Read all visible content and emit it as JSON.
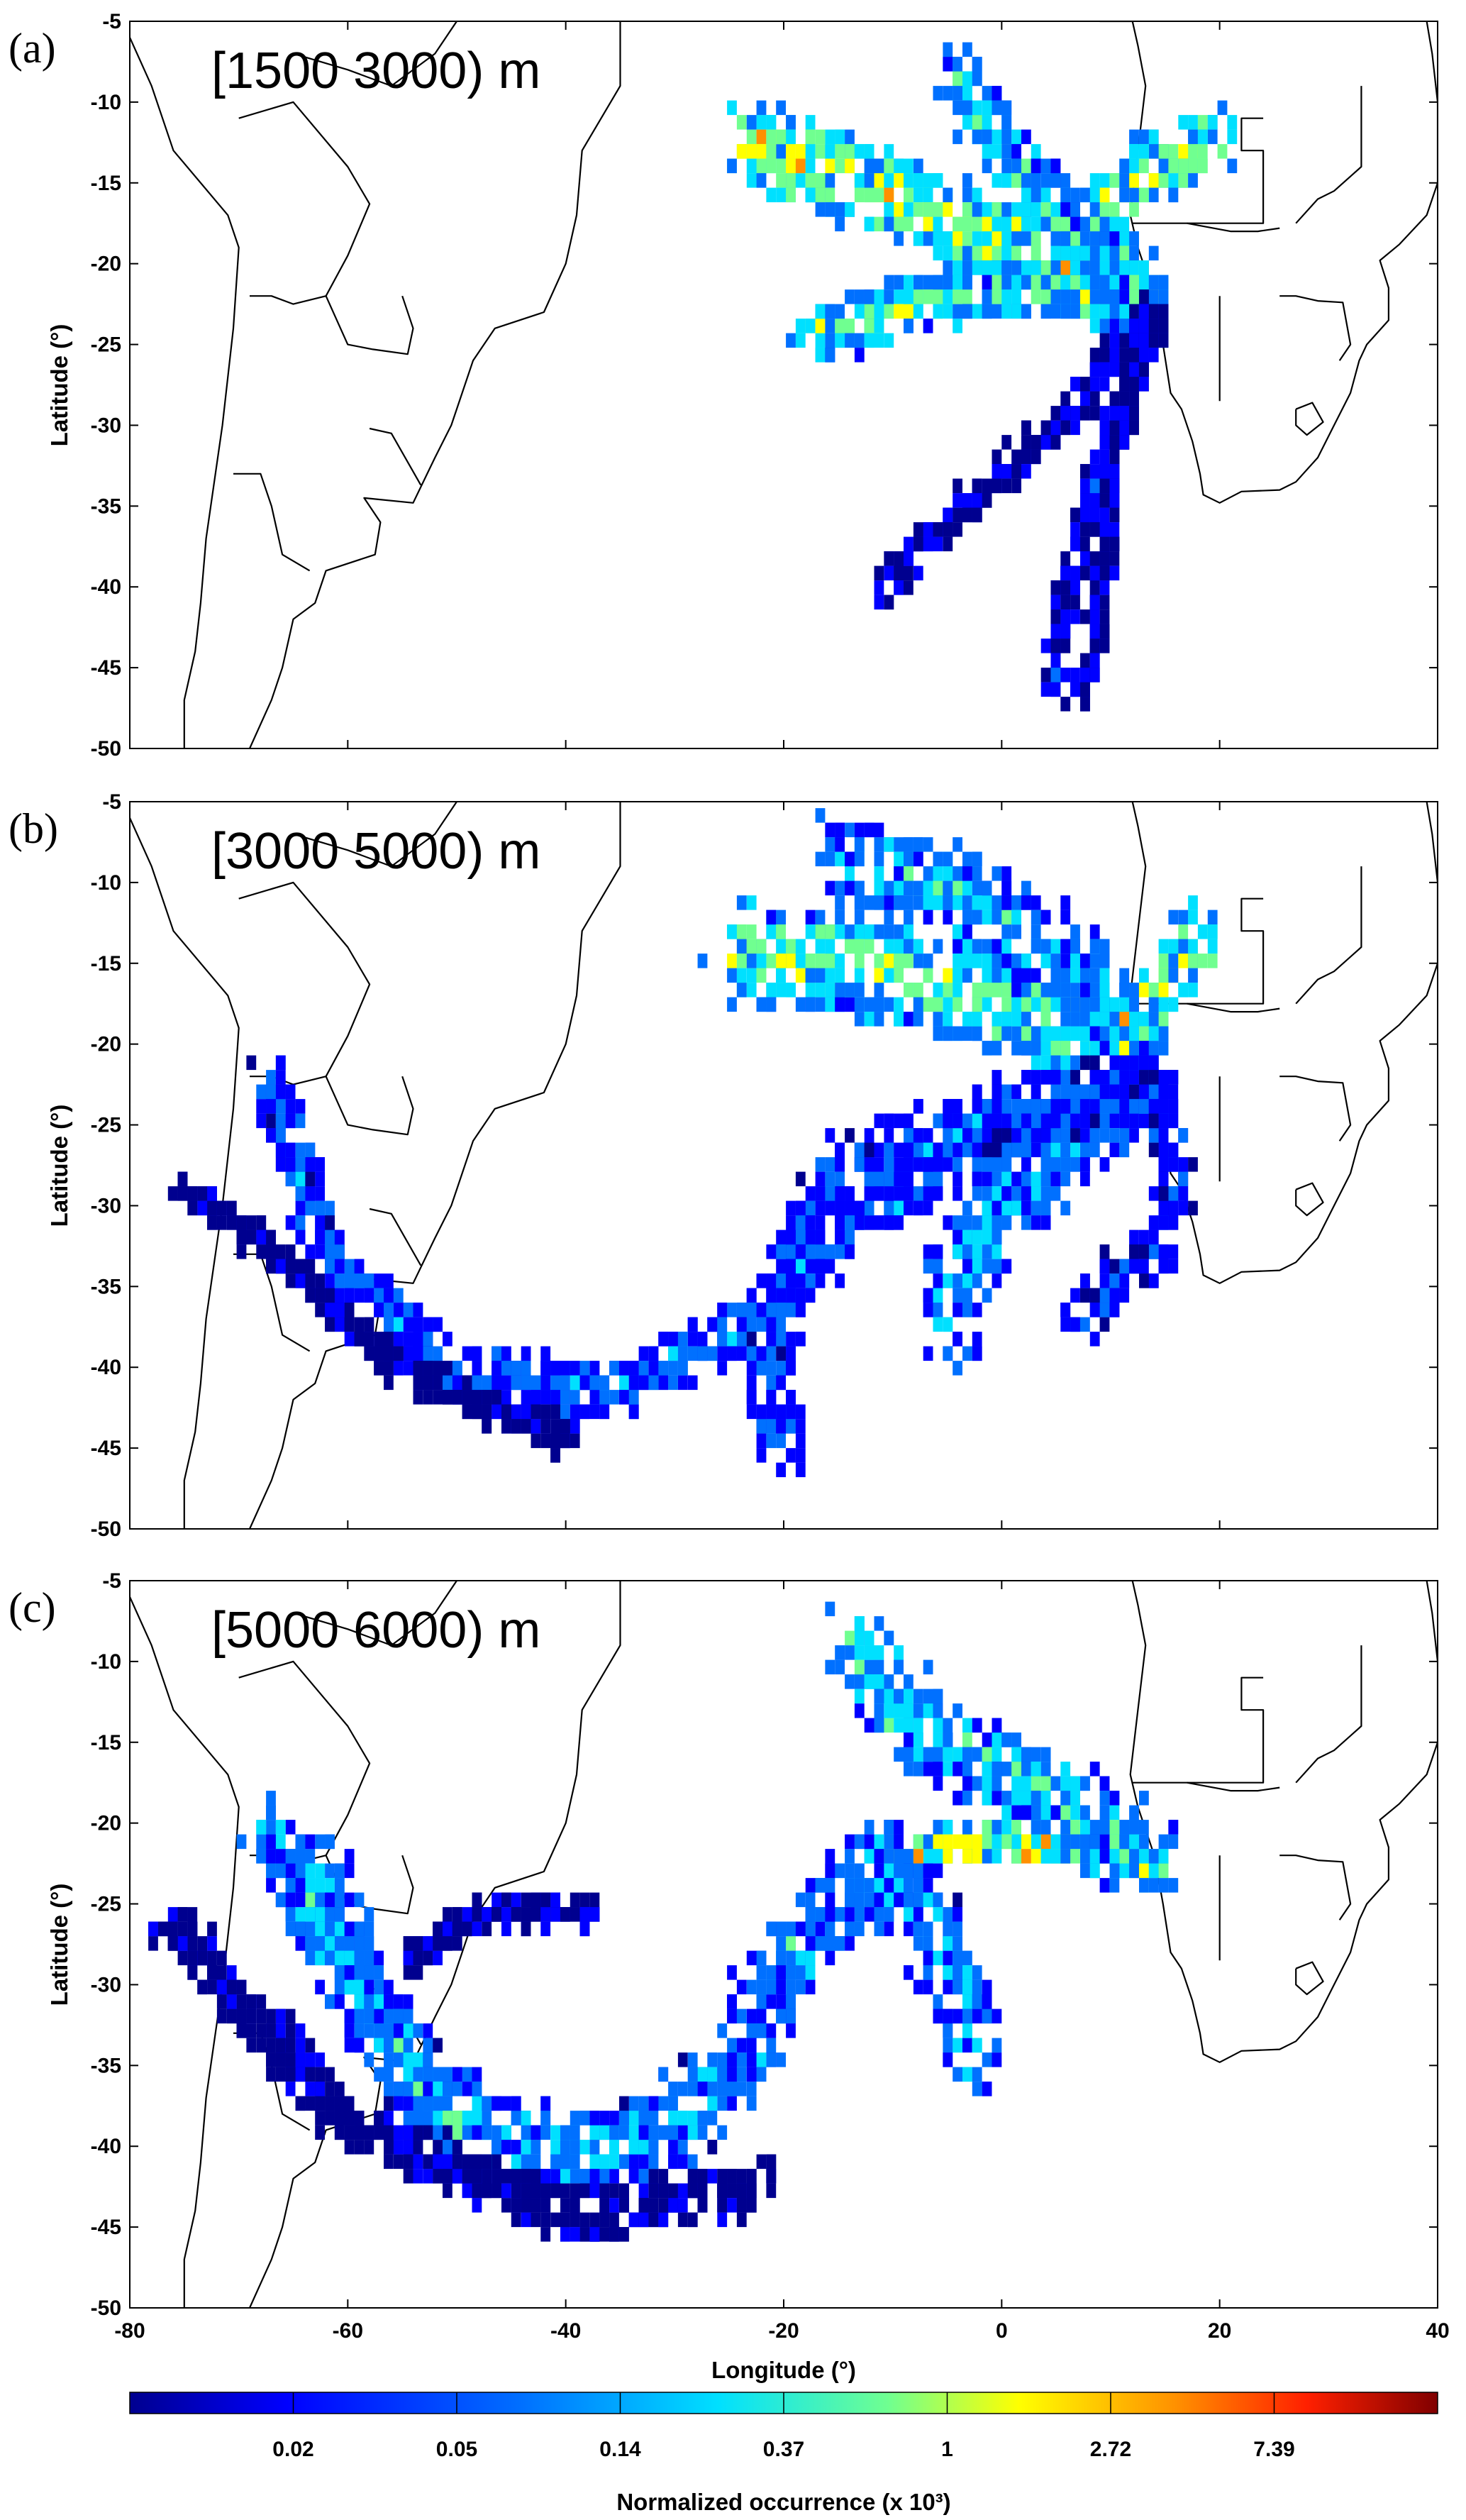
{
  "figure": {
    "colors": {
      "low": "#00008f",
      "mid_low": "#0070ff",
      "mid": "#20e0e0",
      "mid_high": "#ffff00",
      "high": "#ff2000",
      "max": "#800000",
      "coast": "#000000"
    }
  },
  "chart_data": [
    {
      "type": "heatmap",
      "panel_letter": "(a)",
      "altitude_label": "[1500 3000) m",
      "xlim": [
        -80,
        40
      ],
      "ylim": [
        -50,
        -5
      ],
      "ylabel": "Latitude (°)",
      "xlabel": "",
      "y_ticks": [
        "-5",
        "-10",
        "-15",
        "-20",
        "-25",
        "-30",
        "-35",
        "-40",
        "-45",
        "-50"
      ],
      "x_ticks": [],
      "trajectory_groups": [
        {
          "points": [
            [
              -24,
              -12
            ],
            [
              -15,
              -14
            ],
            [
              -5,
              -17
            ],
            [
              5,
              -20
            ],
            [
              13.5,
              -22.5
            ]
          ],
          "level": 0.8,
          "spread": 2.5
        },
        {
          "points": [
            [
              -18,
              -24
            ],
            [
              -8,
              -22
            ],
            [
              2,
              -21
            ],
            [
              13.5,
              -22.5
            ]
          ],
          "level": 0.7,
          "spread": 1.5
        },
        {
          "points": [
            [
              19,
              -12
            ],
            [
              12,
              -14
            ],
            [
              8,
              -17
            ],
            [
              13.5,
              -22.5
            ]
          ],
          "level": 0.75,
          "spread": 2
        },
        {
          "points": [
            [
              -5,
              -8
            ],
            [
              0,
              -13
            ],
            [
              6,
              -18
            ],
            [
              13.5,
              -22.5
            ]
          ],
          "level": 0.6,
          "spread": 2
        },
        {
          "points": [
            [
              13.5,
              -22.5
            ],
            [
              10,
              -30
            ],
            [
              6,
              -38
            ],
            [
              4,
              -46
            ]
          ],
          "level": 0.25,
          "spread": 1
        },
        {
          "points": [
            [
              13.5,
              -22.5
            ],
            [
              4,
              -30
            ],
            [
              -8,
              -37
            ],
            [
              -12,
              -40
            ]
          ],
          "level": 0.2,
          "spread": 1
        },
        {
          "points": [
            [
              13.5,
              -22.5
            ],
            [
              10,
              -32
            ],
            [
              8,
              -44
            ],
            [
              6,
              -47
            ]
          ],
          "level": 0.2,
          "spread": 0.8
        }
      ]
    },
    {
      "type": "heatmap",
      "panel_letter": "(b)",
      "altitude_label": "[3000 5000) m",
      "xlim": [
        -80,
        40
      ],
      "ylim": [
        -50,
        -5
      ],
      "ylabel": "Latitude (°)",
      "xlabel": "",
      "y_ticks": [
        "-5",
        "-10",
        "-15",
        "-20",
        "-25",
        "-30",
        "-35",
        "-40",
        "-45",
        "-50"
      ],
      "x_ticks": [],
      "trajectory_groups": [
        {
          "points": [
            [
              -25,
              -14
            ],
            [
              -12,
              -15
            ],
            [
              0,
              -17
            ],
            [
              8,
              -19
            ],
            [
              13.5,
              -22
            ]
          ],
          "level": 0.7,
          "spread": 3
        },
        {
          "points": [
            [
              18,
              -13
            ],
            [
              14,
              -16
            ],
            [
              11,
              -19
            ],
            [
              13.5,
              -22
            ]
          ],
          "level": 0.8,
          "spread": 2
        },
        {
          "points": [
            [
              -15,
              -8
            ],
            [
              -5,
              -10
            ],
            [
              5,
              -14
            ],
            [
              11,
              -18
            ]
          ],
          "level": 0.55,
          "spread": 2.5
        },
        {
          "points": [
            [
              13.5,
              -22
            ],
            [
              5,
              -24
            ],
            [
              -5,
              -27
            ],
            [
              -15,
              -31
            ],
            [
              -22,
              -36
            ],
            [
              -35,
              -41
            ],
            [
              -50,
              -40
            ],
            [
              -62,
              -33
            ],
            [
              -68,
              -21
            ]
          ],
          "level": 0.4,
          "spread": 1.5
        },
        {
          "points": [
            [
              13.5,
              -22
            ],
            [
              2,
              -28
            ],
            [
              -5,
              -34
            ],
            [
              -5,
              -38
            ]
          ],
          "level": 0.5,
          "spread": 2.5
        },
        {
          "points": [
            [
              13.5,
              -22
            ],
            [
              -2,
              -24
            ],
            [
              -16,
              -28
            ],
            [
              -20,
              -34
            ],
            [
              -22,
              -40
            ],
            [
              -20,
              -45
            ]
          ],
          "level": 0.35,
          "spread": 2
        },
        {
          "points": [
            [
              13.5,
              -22
            ],
            [
              16,
              -28
            ],
            [
              14,
              -32
            ],
            [
              6,
              -37
            ]
          ],
          "level": 0.3,
          "spread": 1.5
        },
        {
          "points": [
            [
              -40,
              -44
            ],
            [
              -55,
              -40
            ],
            [
              -68,
              -32
            ],
            [
              -76,
              -28
            ]
          ],
          "level": 0.15,
          "spread": 1
        }
      ]
    },
    {
      "type": "heatmap",
      "panel_letter": "(c)",
      "altitude_label": "[5000 6000) m",
      "xlim": [
        -80,
        40
      ],
      "ylim": [
        -50,
        -5
      ],
      "ylabel": "Latitude (°)",
      "xlabel": "Longitude (°)",
      "y_ticks": [
        "-5",
        "-10",
        "-15",
        "-20",
        "-25",
        "-30",
        "-35",
        "-40",
        "-45",
        "-50"
      ],
      "x_ticks": [
        "-80",
        "-60",
        "-40",
        "-20",
        "0",
        "20",
        "40"
      ],
      "trajectory_groups": [
        {
          "points": [
            [
              13.5,
              -22
            ],
            [
              5,
              -21
            ],
            [
              -5,
              -21
            ],
            [
              -12,
              -22
            ]
          ],
          "level": 0.9,
          "spread": 1
        },
        {
          "points": [
            [
              -12,
              -22
            ],
            [
              -20,
              -28
            ],
            [
              -25,
              -35
            ],
            [
              -35,
              -40
            ],
            [
              -48,
              -39
            ],
            [
              -58,
              -32
            ],
            [
              -64,
              -22
            ]
          ],
          "level": 0.5,
          "spread": 2.5
        },
        {
          "points": [
            [
              13.5,
              -22
            ],
            [
              2,
              -17
            ],
            [
              -8,
              -14
            ],
            [
              -14,
              -8
            ]
          ],
          "level": 0.6,
          "spread": 2.5
        },
        {
          "points": [
            [
              -12,
              -22
            ],
            [
              -5,
              -28
            ],
            [
              -3,
              -35
            ]
          ],
          "level": 0.5,
          "spread": 2.5
        },
        {
          "points": [
            [
              -68,
              -20
            ],
            [
              -62,
              -27
            ],
            [
              -55,
              -34
            ],
            [
              -50,
              -39
            ]
          ],
          "level": 0.55,
          "spread": 2
        },
        {
          "points": [
            [
              -22,
              -42
            ],
            [
              -40,
              -44
            ],
            [
              -60,
              -38
            ],
            [
              -78,
              -25
            ]
          ],
          "level": 0.15,
          "spread": 1.5
        },
        {
          "points": [
            [
              -55,
              -28
            ],
            [
              -48,
              -25
            ],
            [
              -37,
              -25
            ]
          ],
          "level": 0.15,
          "spread": 0.8
        }
      ]
    },
    {
      "type": "colorbar",
      "label": "Normalized occurrence (x 10³)",
      "ticks": [
        "0.02",
        "0.05",
        "0.14",
        "0.37",
        "1",
        "2.72",
        "7.39"
      ],
      "colors": [
        "#00008f",
        "#0000ff",
        "#0070ff",
        "#00e0ff",
        "#70ff90",
        "#ffff00",
        "#ff9000",
        "#ff2000",
        "#800000"
      ]
    }
  ]
}
